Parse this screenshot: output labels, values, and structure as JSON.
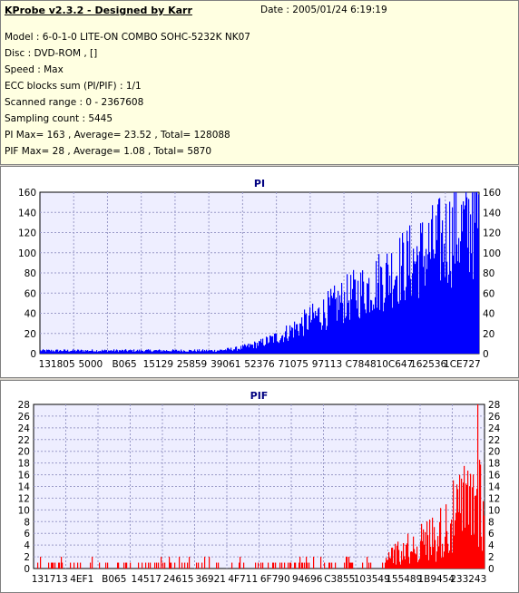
{
  "window": {
    "title": "KProbe v2.3.2 - Designed by Karr",
    "date": "Date : 2005/01/24 6:19:19"
  },
  "info": [
    "Model : 6-0-1-0 LITE-ON COMBO SOHC-5232K NK07",
    "Disc : DVD-ROM ,  []",
    "Speed : Max",
    "ECC blocks sum (PI/PIF) : 1/1",
    "Scanned range : 0 - 2367608",
    "Sampling count : 5445",
    "PI Max= 163 , Average= 23.52 , Total= 128088",
    "PIF Max= 28 , Average= 1.08 , Total= 5870"
  ],
  "chart_data": [
    {
      "type": "bar",
      "title": "PI",
      "color": "#0000ff",
      "ylim": [
        0,
        160
      ],
      "yticks": [
        0,
        20,
        40,
        60,
        80,
        100,
        120,
        140,
        160
      ],
      "xticks": [
        "131805",
        "5000",
        "B065",
        "15129",
        "25859",
        "39061",
        "52376",
        "71075",
        "97113",
        "C7848",
        "10C647",
        "162536",
        "1CE727"
      ],
      "grid": true,
      "max": 163,
      "average": 23.52,
      "total": 128088,
      "profile": [
        [
          0.0,
          3
        ],
        [
          0.25,
          3
        ],
        [
          0.4,
          3
        ],
        [
          0.45,
          5
        ],
        [
          0.5,
          10
        ],
        [
          0.55,
          18
        ],
        [
          0.6,
          30
        ],
        [
          0.65,
          42
        ],
        [
          0.7,
          55
        ],
        [
          0.75,
          66
        ],
        [
          0.8,
          80
        ],
        [
          0.85,
          92
        ],
        [
          0.9,
          106
        ],
        [
          0.95,
          122
        ],
        [
          1.0,
          130
        ]
      ]
    },
    {
      "type": "bar",
      "title": "PIF",
      "color": "#ff0000",
      "ylim": [
        0,
        28
      ],
      "yticks": [
        0,
        2,
        4,
        6,
        8,
        10,
        12,
        14,
        16,
        18,
        20,
        22,
        24,
        26,
        28
      ],
      "xticks": [
        "131713",
        "4EF1",
        "B065",
        "14517",
        "24615",
        "36921",
        "4F711",
        "6F790",
        "94696",
        "C3855",
        "103549",
        "155489",
        "1B9454",
        "233243"
      ],
      "grid": true,
      "max": 28,
      "average": 1.08,
      "total": 5870,
      "profile": [
        [
          0.0,
          1
        ],
        [
          0.6,
          1
        ],
        [
          0.75,
          1.5
        ],
        [
          0.8,
          2.5
        ],
        [
          0.85,
          4
        ],
        [
          0.9,
          6
        ],
        [
          0.95,
          10
        ],
        [
          1.0,
          13
        ]
      ]
    }
  ]
}
